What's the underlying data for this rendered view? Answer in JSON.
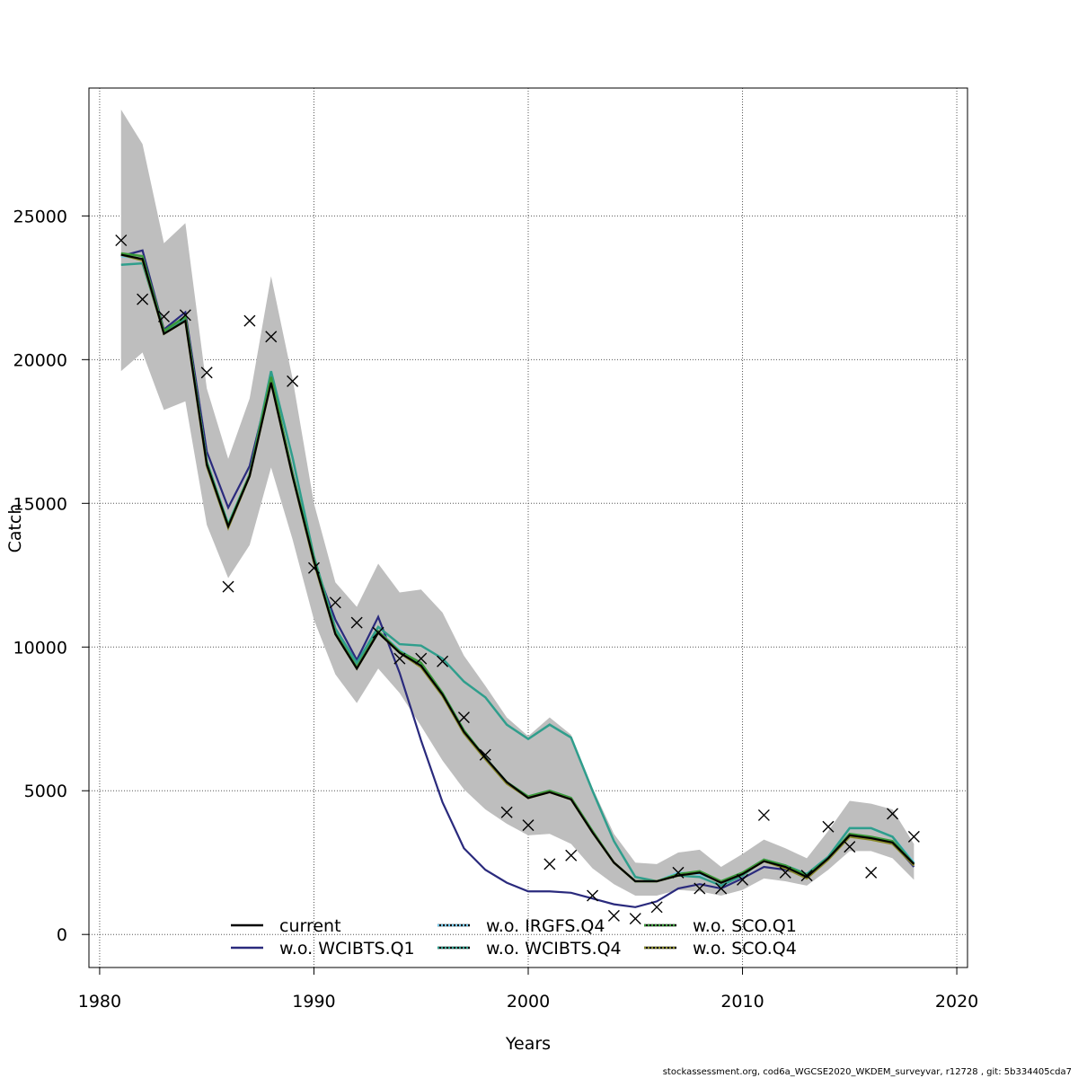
{
  "chart_data": {
    "type": "line",
    "xlabel": "Years",
    "ylabel": "Catch",
    "xlim": [
      1979.5,
      2020.5
    ],
    "ylim": [
      -1150,
      29450
    ],
    "xticks": [
      1980,
      1990,
      2000,
      2010,
      2020
    ],
    "yticks": [
      0,
      5000,
      10000,
      15000,
      20000,
      25000
    ],
    "grid": true,
    "band_color": "#bebebe",
    "band": {
      "x": [
        1981,
        1982,
        1983,
        1984,
        1985,
        1986,
        1987,
        1988,
        1989,
        1990,
        1991,
        1992,
        1993,
        1994,
        1995,
        1996,
        1997,
        1998,
        1999,
        2000,
        2001,
        2002,
        2003,
        2004,
        2005,
        2006,
        2007,
        2008,
        2009,
        2010,
        2011,
        2012,
        2013,
        2014,
        2015,
        2016,
        2017,
        2018
      ],
      "upper": [
        28700,
        27500,
        24050,
        24750,
        19000,
        16550,
        18650,
        22900,
        19350,
        15000,
        12250,
        11400,
        12900,
        11900,
        12000,
        11200,
        9700,
        8650,
        7550,
        6900,
        7550,
        6950,
        5100,
        3500,
        2500,
        2450,
        2850,
        2950,
        2350,
        2800,
        3300,
        3000,
        2650,
        3600,
        4650,
        4550,
        4350,
        3150
      ],
      "lower": [
        19600,
        20250,
        18250,
        18550,
        14250,
        12400,
        13550,
        16250,
        13750,
        10950,
        9050,
        8050,
        9250,
        8400,
        7250,
        6050,
        5050,
        4350,
        3850,
        3450,
        3500,
        3150,
        2300,
        1750,
        1350,
        1350,
        1550,
        1500,
        1350,
        1550,
        1950,
        1850,
        1700,
        2250,
        2900,
        2900,
        2650,
        1900
      ]
    },
    "observed": {
      "name": "observed",
      "x": [
        1981,
        1982,
        1983,
        1984,
        1985,
        1986,
        1987,
        1988,
        1989,
        1990,
        1991,
        1992,
        1993,
        1994,
        1995,
        1996,
        1997,
        1998,
        1999,
        2000,
        2001,
        2002,
        2003,
        2004,
        2005,
        2006,
        2007,
        2008,
        2009,
        2010,
        2011,
        2012,
        2013,
        2014,
        2015,
        2016,
        2017,
        2018
      ],
      "y": [
        24150,
        22100,
        21500,
        21550,
        19550,
        12100,
        21350,
        20800,
        19250,
        12750,
        11550,
        10850,
        10500,
        9600,
        9600,
        9500,
        7550,
        6250,
        4250,
        3800,
        2450,
        2750,
        1350,
        650,
        550,
        950,
        2150,
        1600,
        1600,
        1900,
        4150,
        2150,
        2050,
        3750,
        3050,
        2150,
        4200,
        3400
      ]
    },
    "x": [
      1981,
      1982,
      1983,
      1984,
      1985,
      1986,
      1987,
      1988,
      1989,
      1990,
      1991,
      1992,
      1993,
      1994,
      1995,
      1996,
      1997,
      1998,
      1999,
      2000,
      2001,
      2002,
      2003,
      2004,
      2005,
      2006,
      2007,
      2008,
      2009,
      2010,
      2011,
      2012,
      2013,
      2014,
      2015,
      2016,
      2017,
      2018
    ],
    "series": [
      {
        "name": "current",
        "color": "#000000",
        "dotted": false,
        "values": [
          23650,
          23500,
          20900,
          21350,
          16350,
          14200,
          15950,
          19200,
          15950,
          13000,
          10450,
          9250,
          10500,
          9800,
          9350,
          8350,
          7050,
          6150,
          5300,
          4750,
          4950,
          4700,
          3550,
          2500,
          1850,
          1850,
          2050,
          2150,
          1800,
          2100,
          2550,
          2350,
          2000,
          2650,
          3450,
          3350,
          3200,
          2450
        ]
      },
      {
        "name": "w.o. WCIBTS.Q1",
        "color": "#2a2a7d",
        "dotted": false,
        "values": [
          23600,
          23800,
          21050,
          21650,
          16800,
          14850,
          16300,
          19350,
          16100,
          12950,
          10950,
          9550,
          11050,
          9100,
          6750,
          4600,
          3000,
          2250,
          1800,
          1500,
          1500,
          1450,
          1250,
          1050,
          950,
          1150,
          1600,
          1750,
          1600,
          1950,
          2350,
          2250,
          2050,
          2650,
          3450,
          3350,
          3200,
          2350
        ]
      },
      {
        "name": "w.o. IRGFS.Q4",
        "color": "#6ec6ea",
        "dotted": true,
        "values": [
          23600,
          23500,
          20950,
          21450,
          16450,
          14300,
          16000,
          19300,
          16050,
          13000,
          10550,
          9300,
          10550,
          9900,
          9400,
          8400,
          7100,
          6150,
          5300,
          4800,
          5000,
          4750,
          3600,
          2500,
          1850,
          1850,
          2150,
          2100,
          1850,
          2150,
          2600,
          2400,
          2100,
          2700,
          3700,
          3700,
          3400,
          2500
        ]
      },
      {
        "name": "w.o. WCIBTS.Q4",
        "color": "#2f9e8c",
        "dotted": true,
        "values": [
          23300,
          23350,
          20950,
          21400,
          16450,
          14250,
          16000,
          19600,
          16600,
          13150,
          10650,
          9450,
          10700,
          10100,
          10050,
          9600,
          8800,
          8250,
          7300,
          6800,
          7300,
          6850,
          5000,
          3250,
          2000,
          1850,
          2050,
          2000,
          1700,
          2050,
          2600,
          2400,
          2100,
          2700,
          3700,
          3700,
          3400,
          2450
        ]
      },
      {
        "name": "w.o. SCO.Q1",
        "color": "#3a9a3a",
        "dotted": true,
        "values": [
          23700,
          23600,
          21000,
          21500,
          16400,
          14250,
          16000,
          19400,
          16050,
          13050,
          10500,
          9300,
          10550,
          9850,
          9450,
          8400,
          7100,
          6150,
          5300,
          4800,
          5000,
          4750,
          3600,
          2500,
          1850,
          1850,
          2100,
          2200,
          1850,
          2150,
          2600,
          2400,
          2050,
          2650,
          3500,
          3400,
          3250,
          2450
        ]
      },
      {
        "name": "w.o. SCO.Q4",
        "color": "#8a8a2a",
        "dotted": true,
        "values": [
          23650,
          23450,
          20900,
          21350,
          16300,
          14150,
          15950,
          19200,
          15950,
          12950,
          10450,
          9250,
          10500,
          9800,
          9300,
          8300,
          7000,
          6100,
          5250,
          4750,
          4950,
          4700,
          3550,
          2500,
          1850,
          1850,
          2050,
          2150,
          1800,
          2100,
          2550,
          2300,
          1950,
          2600,
          3400,
          3300,
          3150,
          2400
        ]
      }
    ],
    "legend": {
      "placement": "bottom",
      "items": [
        "current",
        "w.o. IRGFS.Q4",
        "w.o. SCO.Q1",
        "w.o. WCIBTS.Q1",
        "w.o. WCIBTS.Q4",
        "w.o. SCO.Q4"
      ]
    },
    "footer": "stockassessment.org, cod6a_WGCSE2020_WKDEM_surveyvar, r12728 , git: 5b334405cda7"
  }
}
